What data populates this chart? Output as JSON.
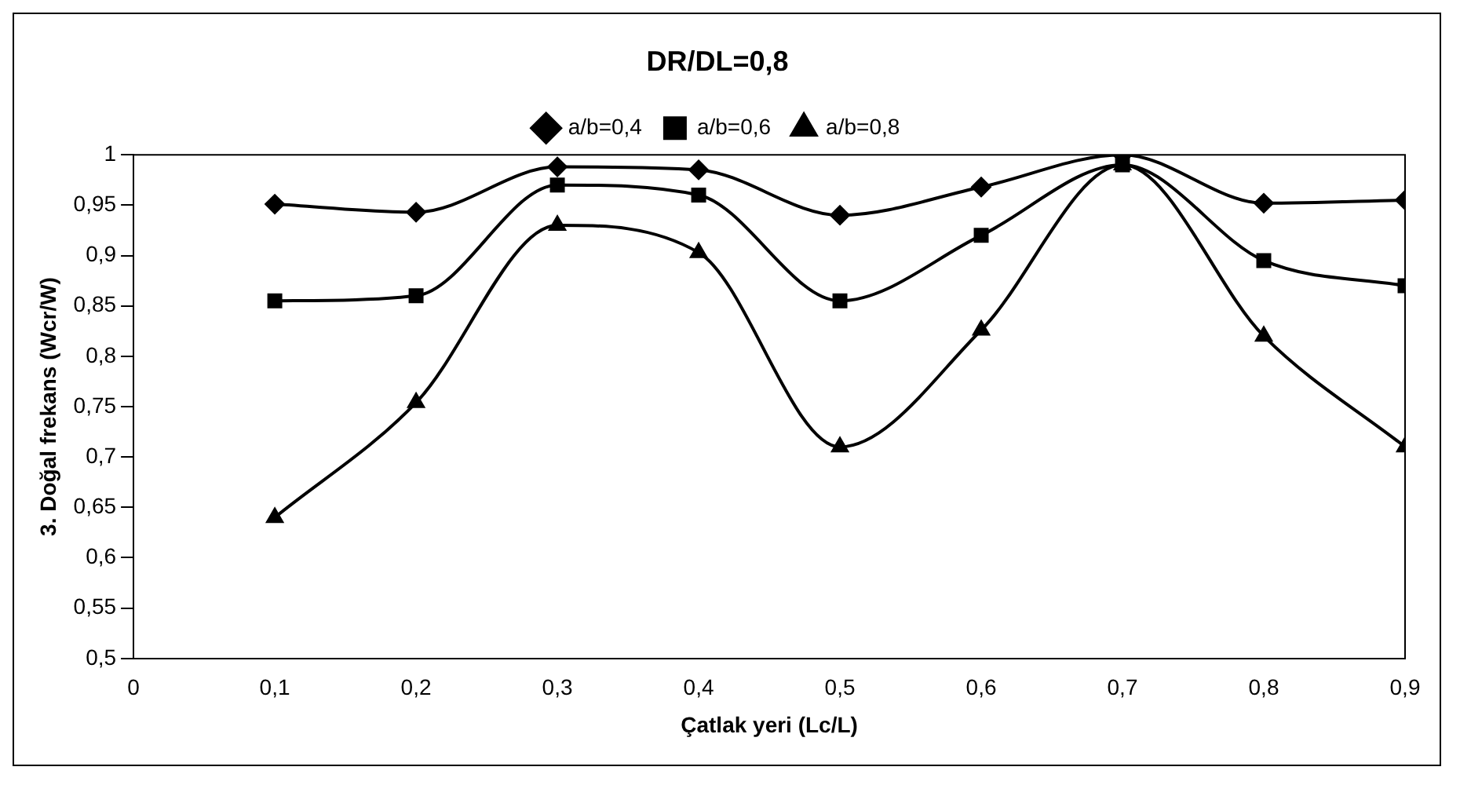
{
  "chart_data": {
    "type": "line",
    "title": "DR/DL=0,8",
    "xlabel": "Çatlak yeri (Lc/L)",
    "ylabel": "3. Doğal frekans (Wcr/W)",
    "x": [
      0.1,
      0.2,
      0.3,
      0.4,
      0.5,
      0.6,
      0.7,
      0.8,
      0.9
    ],
    "series": [
      {
        "name": "a/b=0,4",
        "color": "#000000",
        "marker": "diamond",
        "values": [
          0.951,
          0.943,
          0.988,
          0.985,
          0.94,
          0.968,
          1.0,
          0.952,
          0.955
        ]
      },
      {
        "name": "a/b=0,6",
        "color": "#000000",
        "marker": "square",
        "values": [
          0.855,
          0.86,
          0.97,
          0.96,
          0.855,
          0.92,
          0.99,
          0.895,
          0.87
        ]
      },
      {
        "name": "a/b=0,8",
        "color": "#000000",
        "marker": "triangle",
        "values": [
          0.64,
          0.754,
          0.93,
          0.903,
          0.71,
          0.826,
          0.99,
          0.82,
          0.71
        ]
      }
    ],
    "xlim": [
      0,
      0.9
    ],
    "xticks": [
      {
        "value": 0,
        "label": "0"
      },
      {
        "value": 0.1,
        "label": "0,1"
      },
      {
        "value": 0.2,
        "label": "0,2"
      },
      {
        "value": 0.3,
        "label": "0,3"
      },
      {
        "value": 0.4,
        "label": "0,4"
      },
      {
        "value": 0.5,
        "label": "0,5"
      },
      {
        "value": 0.6,
        "label": "0,6"
      },
      {
        "value": 0.7,
        "label": "0,7"
      },
      {
        "value": 0.8,
        "label": "0,8"
      },
      {
        "value": 0.9,
        "label": "0,9"
      }
    ],
    "ylim": [
      0.5,
      1
    ],
    "yticks": [
      {
        "value": 0.5,
        "label": "0,5"
      },
      {
        "value": 0.55,
        "label": "0,55"
      },
      {
        "value": 0.6,
        "label": "0,6"
      },
      {
        "value": 0.65,
        "label": "0,65"
      },
      {
        "value": 0.7,
        "label": "0,7"
      },
      {
        "value": 0.75,
        "label": "0,75"
      },
      {
        "value": 0.8,
        "label": "0,8"
      },
      {
        "value": 0.85,
        "label": "0,85"
      },
      {
        "value": 0.9,
        "label": "0,9"
      },
      {
        "value": 0.95,
        "label": "0,95"
      },
      {
        "value": 1,
        "label": "1"
      }
    ],
    "grid": false,
    "legend": "top",
    "line_style": "solid"
  }
}
